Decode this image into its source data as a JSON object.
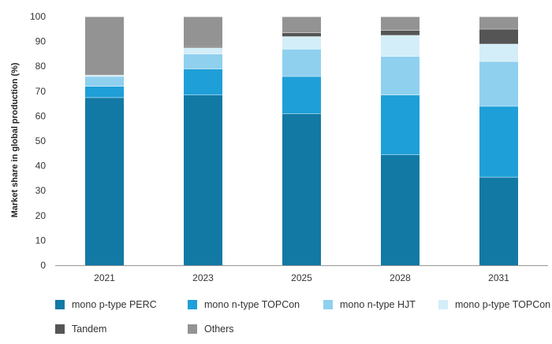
{
  "chart_data": {
    "type": "bar",
    "stacked": true,
    "title": "",
    "xlabel": "",
    "ylabel": "Market share in global production (%)",
    "ylim": [
      0,
      100
    ],
    "yticks": [
      0,
      10,
      20,
      30,
      40,
      50,
      60,
      70,
      80,
      90,
      100
    ],
    "categories": [
      "2021",
      "2023",
      "2025",
      "2028",
      "2031"
    ],
    "legend_position": "bottom",
    "grid": false,
    "series": [
      {
        "name": "mono p-type PERC",
        "color": "#1279a5",
        "values": [
          67.5,
          68.5,
          61,
          44.5,
          35.5
        ]
      },
      {
        "name": "mono n-type TOPCon",
        "color": "#1f9fd8",
        "values": [
          4.5,
          10.5,
          15,
          24,
          28.5
        ]
      },
      {
        "name": "mono n-type HJT",
        "color": "#8fd0ef",
        "values": [
          4,
          6,
          11,
          15.5,
          18
        ]
      },
      {
        "name": "mono p-type TOPCon",
        "color": "#d3eef9",
        "values": [
          0.5,
          2.5,
          5,
          8.5,
          7
        ]
      },
      {
        "name": "Tandem",
        "color": "#555555",
        "values": [
          0,
          0.5,
          1.5,
          2,
          6
        ]
      },
      {
        "name": "Others",
        "color": "#939393",
        "values": [
          23.5,
          12,
          6.5,
          5.5,
          5
        ]
      }
    ]
  }
}
